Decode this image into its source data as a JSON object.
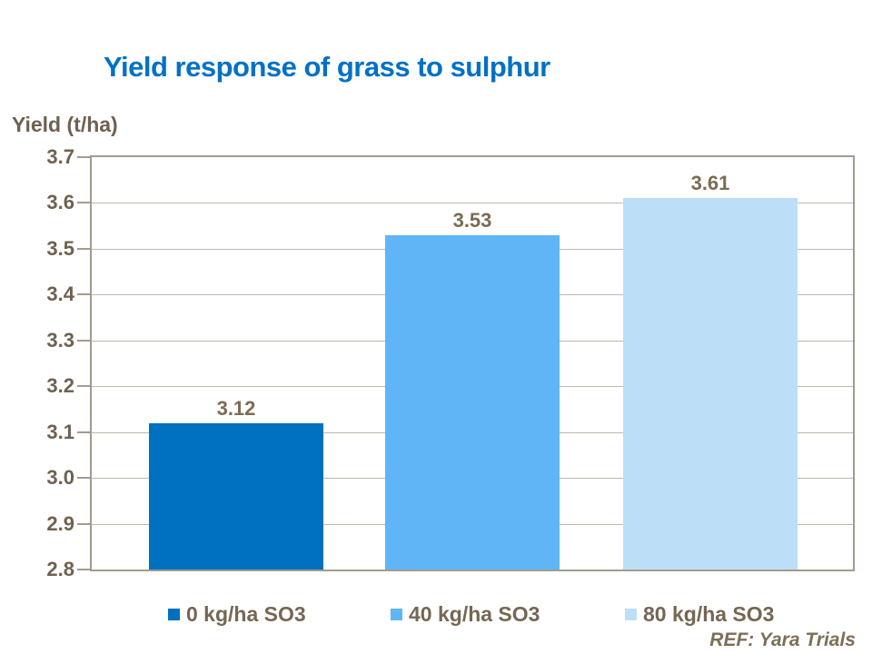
{
  "slide": {
    "ref_note": "REF: Yara Trials"
  },
  "chart_data": {
    "type": "bar",
    "title": "Yield response of grass to sulphur",
    "axis_label": "Yield (t/ha)",
    "categories": [
      "0 kg/ha SO3",
      "40 kg/ha SO3",
      "80 kg/ha SO3"
    ],
    "values": [
      3.12,
      3.53,
      3.61
    ],
    "data_labels": [
      "3.12",
      "3.53",
      "3.61"
    ],
    "legend": [
      "0 kg/ha SO3",
      "40 kg/ha SO3",
      "80 kg/ha SO3"
    ],
    "bar_colors": [
      "#0070C0",
      "#60B5F7",
      "#BCDFF7"
    ],
    "ylim": [
      2.8,
      3.7
    ],
    "ytick_labels": [
      "3.7",
      "3.6",
      "3.5",
      "3.4",
      "3.3",
      "3.2",
      "3.1",
      "3.0",
      "2.9",
      "2.8"
    ],
    "grid": true,
    "legend_position": "bottom"
  },
  "colors": {
    "title_text": "#0071C5",
    "axis_text": "#6F6150",
    "data_label_text": "#7B6C53",
    "legend_text": "#756753",
    "ref_text": "#7E6E55",
    "axis_line": "#A29B8E",
    "gridline": "#BFB8AC",
    "background": "#FFFFFF"
  }
}
